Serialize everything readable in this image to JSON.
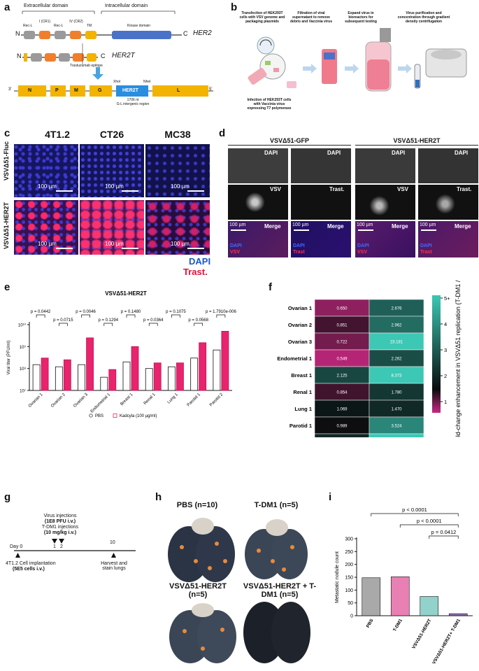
{
  "panels": {
    "a": {
      "letter": "a",
      "extracellular": "Extracellular domain",
      "intracellular": "Intracellular domain",
      "domains": [
        "Rec-L",
        "I (CR1)",
        "Rec-L",
        "IV (CR2)",
        "TM",
        "Kinase domain"
      ],
      "her2": "HER2",
      "her2t": "HER2T",
      "trastuzumab_epitope": "Trastuzumab epitope",
      "genome_genes": [
        "N",
        "P",
        "M",
        "G",
        "HER2T",
        "L"
      ],
      "xhoi": "XhoI",
      "nhei": "NheI",
      "insert_size": "1706 nt",
      "insert_region": "G-L intergenic region",
      "end3": "3'",
      "end5": "5'",
      "N": "N",
      "C": "C"
    },
    "b": {
      "letter": "b",
      "steps": [
        "Transfection of HEK293T cells with VSV genome and packaging plasmids",
        "Filtration of viral supernatant to remove debris and Vaccinia virus",
        "Expand virus in bioreactors for subsequent testing",
        "Virus purification and concentration through gradient density centrifugation"
      ],
      "infection": "Infection of HEK293T cells with Vaccinia virus expressing T7 polymerase"
    },
    "c": {
      "letter": "c",
      "cols": [
        "4T1.2",
        "CT26",
        "MC38"
      ],
      "rows": [
        "VSVΔ51-Fluc",
        "VSVΔ51-HER2T"
      ],
      "scale": "100 µm",
      "legend_dapi": "DAPI",
      "legend_trast": "Trast."
    },
    "d": {
      "letter": "d",
      "group1": "VSVΔ51-GFP",
      "group2": "VSVΔ51-HER2T",
      "labels_row1": [
        "DAPI",
        "DAPI",
        "DAPI",
        "DAPI"
      ],
      "labels_row2": [
        "VSV",
        "Trast.",
        "VSV",
        "Trast."
      ],
      "labels_row3": [
        "Merge",
        "Merge",
        "Merge",
        "Merge"
      ],
      "scale": "100 µm",
      "merge_legend": [
        [
          "DAPI",
          "VSV"
        ],
        [
          "DAPI",
          "Trast"
        ],
        [
          "DAPI",
          "VSV"
        ],
        [
          "DAPI",
          "Trast"
        ]
      ]
    },
    "e": {
      "letter": "e",
      "pvalues": [
        "p = 0.0442",
        "p = 0.0715",
        "p = 0.0046",
        "p = 0.1294",
        "p = 0.1480",
        "p = 0.0364",
        "p = 0.1075",
        "p = 0.0568",
        "p = 1.7910e-006"
      ],
      "legend_pbs": "PBS",
      "legend_kadcyla": "Kadcyla (100 µg/ml)"
    },
    "f": {
      "letter": "f",
      "colorbar_ticks": [
        "5+",
        "4",
        "3",
        "2",
        "1"
      ],
      "colorbar_label": "Fold-change enhancement in VSVΔ51 replication (T-DM1 / PBS)"
    },
    "g": {
      "letter": "g",
      "virus_inj": "Virus injections",
      "virus_dose": "(1E8 PFU i.v.)",
      "tdm1_inj": "T-DM1 injections",
      "tdm1_dose": "(10 mg/kg i.v.)",
      "day0": "Day 0",
      "d1": "1",
      "d2": "2",
      "d10": "10",
      "implant": "4T1.2 Cell implantation",
      "implant_dose": "(5E5 cells i.v.)",
      "harvest": "Harvest and stain lungs"
    },
    "h": {
      "letter": "h",
      "groups": [
        "PBS (n=10)",
        "T-DM1 (n=5)",
        "VSVΔ51-HER2T (n=5)",
        "VSVΔ51-HER2T + T-DM1 (n=5)"
      ]
    },
    "i": {
      "letter": "i",
      "pvalues": [
        "p < 0.0001",
        "p < 0.0001",
        "p = 0.0412"
      ]
    }
  },
  "chart_data": [
    {
      "type": "bar",
      "title": "VSVΔ51-HER2T",
      "ylabel": "Viral titer (PFU/ml)",
      "yscale": "log",
      "ylim": [
        10000000,
        10000000000
      ],
      "ytick_labels": [
        "10⁷",
        "10⁸",
        "10⁹",
        "10¹⁰"
      ],
      "categories": [
        "Ovarian 1",
        "Ovarian 2",
        "Ovarian 3",
        "Endometrial 1",
        "Breast 1",
        "Renal 1",
        "Lung 1",
        "Parotid 1",
        "Parotid 2"
      ],
      "series": [
        {
          "name": "PBS",
          "color": "#ffffff",
          "values": [
            150000000,
            120000000,
            150000000,
            40000000,
            200000000,
            100000000,
            120000000,
            300000000,
            700000000
          ]
        },
        {
          "name": "Kadcyla (100 µg/ml)",
          "color": "#e8246f",
          "values": [
            300000000,
            250000000,
            2500000000,
            90000000,
            1000000000,
            180000000,
            180000000,
            1500000000,
            5000000000
          ]
        }
      ]
    },
    {
      "type": "heatmap",
      "categories": [
        "Ovarian 1",
        "Ovarian 2",
        "Ovarian 3",
        "Endometrial 1",
        "Breast 1",
        "Renal 1",
        "Lung 1",
        "Parotid 1",
        "Parotid 2"
      ],
      "columns": [
        "VSVΔ51-GFP",
        "VSVΔ51-HER2T"
      ],
      "values": [
        [
          0.65,
          2.676
        ],
        [
          0.851,
          2.962
        ],
        [
          0.722,
          23.181
        ],
        [
          0.549,
          2.262
        ],
        [
          2.125,
          8.373
        ],
        [
          0.854,
          1.78
        ],
        [
          1.069,
          1.47
        ],
        [
          0.989,
          3.524
        ],
        [
          1.476,
          9.91
        ]
      ],
      "value_labels": [
        [
          "0.650",
          "2.676"
        ],
        [
          "0.851",
          "2.962"
        ],
        [
          "0.722",
          "23.181"
        ],
        [
          "0.549",
          "2.262"
        ],
        [
          "2.125",
          "8.373"
        ],
        [
          "0.854",
          "1.780"
        ],
        [
          "1.069",
          "1.470"
        ],
        [
          "0.989",
          "3.524"
        ],
        [
          "1.476",
          "9.910"
        ]
      ]
    },
    {
      "type": "bar",
      "ylabel": "Metastatic nodule count",
      "ylim": [
        0,
        300
      ],
      "ytick_labels": [
        "0",
        "50",
        "100",
        "150",
        "200",
        "250",
        "300"
      ],
      "categories": [
        "PBS",
        "T-DM1",
        "VSVΔ51-HER2T",
        "VSVΔ51-HER2T+ T-DM1"
      ],
      "values": [
        148,
        152,
        75,
        8
      ],
      "colors": [
        "#8c8c8c",
        "#e0569a",
        "#6fc2ba",
        "#6a3d9a"
      ]
    }
  ]
}
